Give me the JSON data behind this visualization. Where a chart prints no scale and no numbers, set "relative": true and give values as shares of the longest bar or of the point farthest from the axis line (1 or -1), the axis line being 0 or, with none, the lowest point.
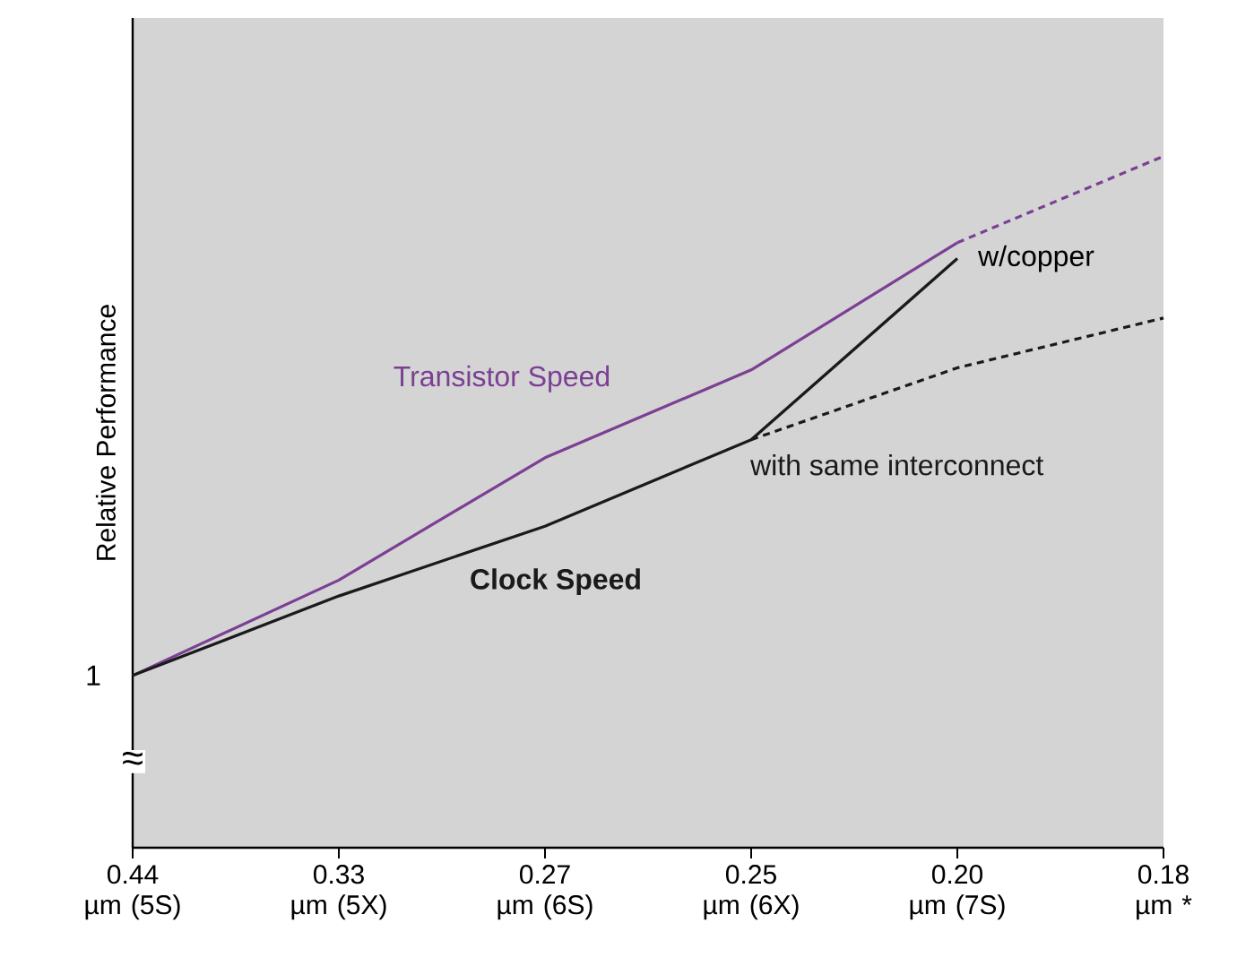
{
  "chart_data": {
    "type": "line",
    "relative": true,
    "ylabel": "Relative Performance",
    "categories": [
      "0.44 µm (5S)",
      "0.33 µm (5X)",
      "0.27 µm (6S)",
      "0.25 µm (6X)",
      "0.20 µm (7S)",
      "0.18 µm *"
    ],
    "series": [
      {
        "name": "Transistor Speed",
        "color": "#7b3f94",
        "line_style": "solid",
        "values": [
          0.249,
          0.387,
          0.564,
          0.691,
          0.875,
          null
        ]
      },
      {
        "color": "#7b3f94",
        "line_style": "dashed",
        "values": [
          null,
          null,
          null,
          null,
          0.875,
          1
        ]
      },
      {
        "name": "Clock Speed",
        "color": "#1a1a1a",
        "line_style": "solid",
        "values": [
          0.249,
          0.364,
          0.465,
          0.59,
          0.852,
          null
        ]
      },
      {
        "name": "with same interconnect",
        "color": "#1a1a1a",
        "line_style": "dashed",
        "values": [
          null,
          null,
          null,
          0.59,
          0.694,
          0.766
        ]
      }
    ],
    "annotations": [
      "1",
      "≈",
      {
        "text": "w/copper",
        "x": "0.20 µm (7S)",
        "y": 0.852
      }
    ]
  }
}
